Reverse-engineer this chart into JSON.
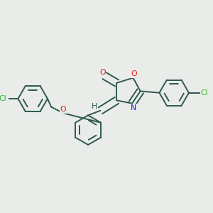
{
  "bg_color": "#eaecea",
  "bond_color": "#2d5a4a",
  "atom_colors": {
    "O": "#ee1111",
    "N": "#1111ee",
    "Cl": "#22bb22",
    "H": "#2d5a4a"
  },
  "bond_width": 1.4,
  "ring_r": 0.072
}
